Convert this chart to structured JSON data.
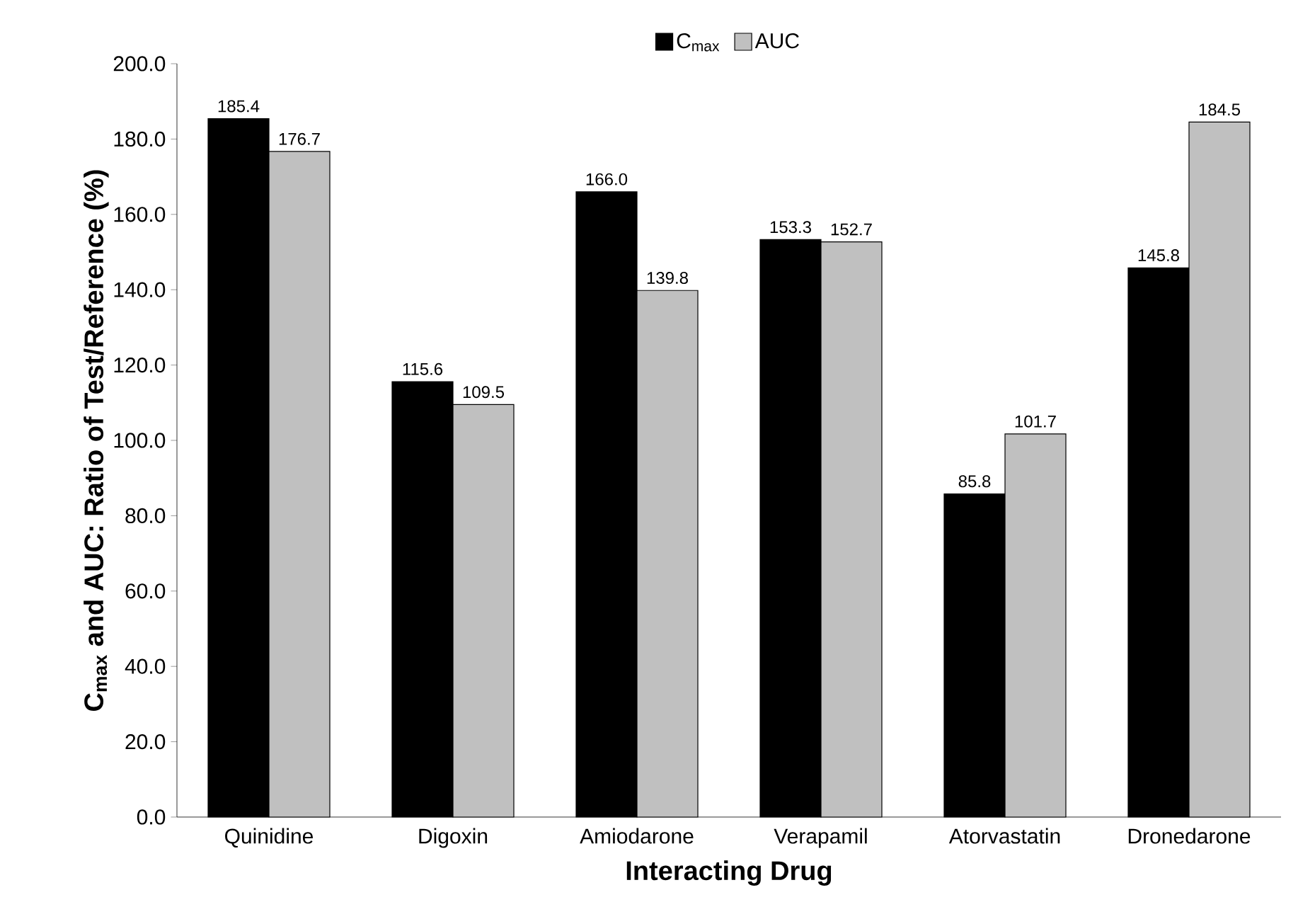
{
  "chart_data": {
    "type": "bar",
    "xlabel": "Interacting Drug",
    "ylabel": "C$_{max}$ and AUC: Ratio of Test/Reference (%)",
    "categories": [
      "Quinidine",
      "Digoxin",
      "Amiodarone",
      "Verapamil",
      "Atorvastatin",
      "Dronedarone"
    ],
    "series": [
      {
        "name": "C$_{max}$",
        "color": "#000000",
        "values": [
          185.4,
          115.6,
          166.0,
          153.3,
          85.8,
          145.8
        ],
        "value_labels": [
          "185.4",
          "115.6",
          "166.0",
          "153.3",
          "85.8",
          "145.8"
        ]
      },
      {
        "name": "AUC",
        "color": "#c0c0c0",
        "values": [
          176.7,
          109.5,
          139.8,
          152.7,
          101.7,
          184.5
        ],
        "value_labels": [
          "176.7",
          "109.5",
          "139.8",
          "152.7",
          "101.7",
          "184.5"
        ]
      }
    ],
    "ylim": [
      0,
      200
    ],
    "yticks": [
      {
        "value": 0,
        "label": "0.0"
      },
      {
        "value": 20,
        "label": "20.0"
      },
      {
        "value": 40,
        "label": "40.0"
      },
      {
        "value": 60,
        "label": "60.0"
      },
      {
        "value": 80,
        "label": "80.0"
      },
      {
        "value": 100,
        "label": "100.0"
      },
      {
        "value": 120,
        "label": "120.0"
      },
      {
        "value": 140,
        "label": "140.0"
      },
      {
        "value": 160,
        "label": "160.0"
      },
      {
        "value": 180,
        "label": "180.0"
      },
      {
        "value": 200,
        "label": "200.0"
      }
    ],
    "legend": "top"
  }
}
